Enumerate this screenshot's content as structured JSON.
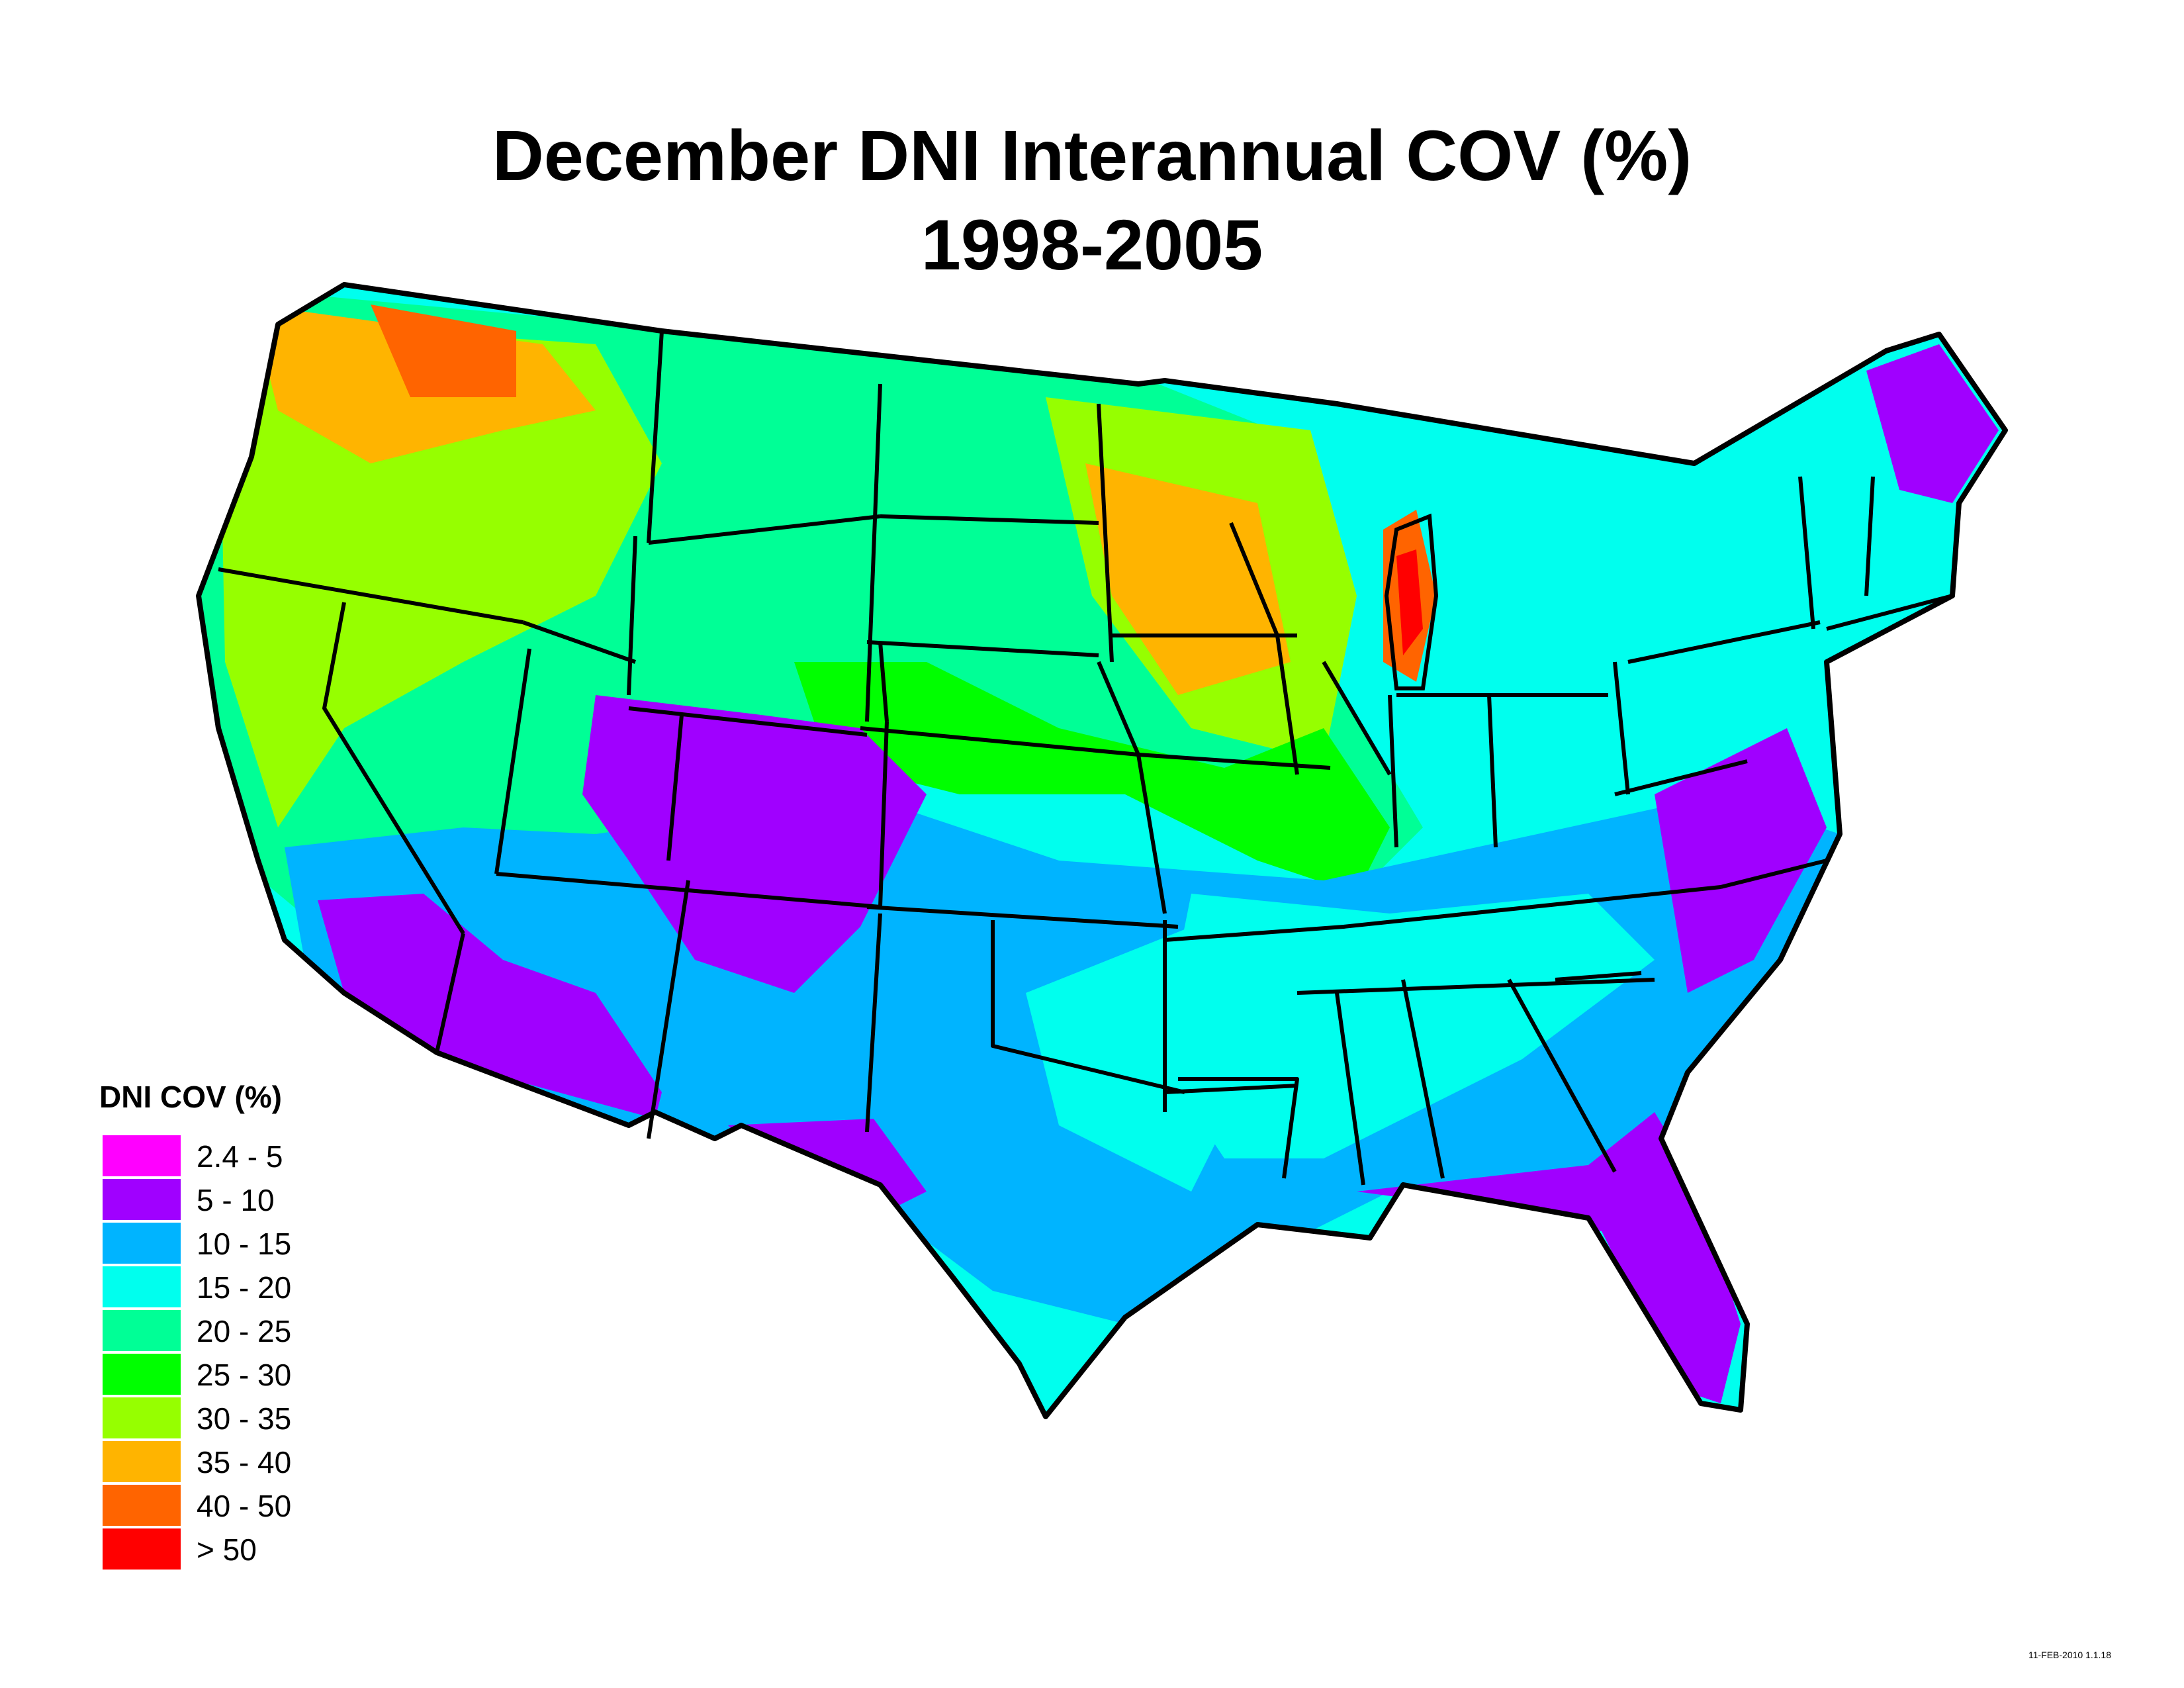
{
  "title_line1": "December DNI Interannual COV (%)",
  "title_line2": "1998-2005",
  "legend": {
    "title": "DNI COV (%)",
    "items": [
      {
        "label": "2.4 - 5",
        "color": "#ff00ff"
      },
      {
        "label": "5 - 10",
        "color": "#a000ff"
      },
      {
        "label": "10 - 15",
        "color": "#00b4ff"
      },
      {
        "label": "15 - 20",
        "color": "#00ffee"
      },
      {
        "label": "20 - 25",
        "color": "#00ff96"
      },
      {
        "label": "25 - 30",
        "color": "#00ff00"
      },
      {
        "label": "30 - 35",
        "color": "#96ff00"
      },
      {
        "label": "35 - 40",
        "color": "#ffb400"
      },
      {
        "label": "40 - 50",
        "color": "#ff6400"
      },
      {
        "label": "> 50",
        "color": "#ff0000"
      }
    ]
  },
  "timestamp": "11-FEB-2010 1.1.18"
}
